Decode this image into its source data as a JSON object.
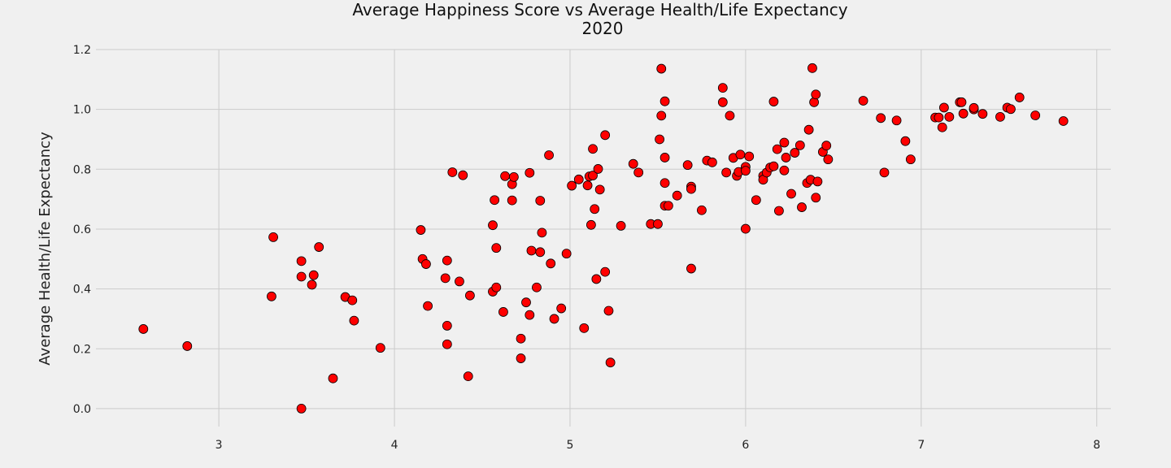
{
  "chart_data": {
    "type": "scatter",
    "title_lines": [
      "Average Happiness Score vs Average Health/Life Expectancy",
      "2020"
    ],
    "xlabel": "",
    "ylabel": "Average Health/Life Expectancy",
    "xlim": [
      2.3,
      8.08
    ],
    "ylim": [
      -0.06,
      1.2
    ],
    "xticks": [
      3,
      4,
      5,
      6,
      7,
      8
    ],
    "yticks": [
      0.0,
      0.2,
      0.4,
      0.6,
      0.8,
      1.0,
      1.2
    ],
    "ytick_labels": [
      "0.0",
      "0.2",
      "0.4",
      "0.6",
      "0.8",
      "1.0",
      "1.2"
    ],
    "grid": true,
    "marker_color": "#ff0000",
    "marker_edge": "#000000",
    "points": [
      [
        2.57,
        0.266
      ],
      [
        2.82,
        0.209
      ],
      [
        3.3,
        0.375
      ],
      [
        3.31,
        0.573
      ],
      [
        3.47,
        0.493
      ],
      [
        3.47,
        0.441
      ],
      [
        3.47,
        0.0
      ],
      [
        3.53,
        0.414
      ],
      [
        3.54,
        0.446
      ],
      [
        3.57,
        0.54
      ],
      [
        3.65,
        0.101
      ],
      [
        3.72,
        0.373
      ],
      [
        3.76,
        0.362
      ],
      [
        3.77,
        0.294
      ],
      [
        3.92,
        0.203
      ],
      [
        4.15,
        0.597
      ],
      [
        4.16,
        0.5
      ],
      [
        4.18,
        0.483
      ],
      [
        4.19,
        0.343
      ],
      [
        4.29,
        0.436
      ],
      [
        4.3,
        0.495
      ],
      [
        4.3,
        0.277
      ],
      [
        4.3,
        0.215
      ],
      [
        4.33,
        0.79
      ],
      [
        4.37,
        0.425
      ],
      [
        4.39,
        0.78
      ],
      [
        4.42,
        0.108
      ],
      [
        4.43,
        0.378
      ],
      [
        4.56,
        0.613
      ],
      [
        4.56,
        0.391
      ],
      [
        4.57,
        0.697
      ],
      [
        4.58,
        0.405
      ],
      [
        4.58,
        0.537
      ],
      [
        4.62,
        0.323
      ],
      [
        4.63,
        0.777
      ],
      [
        4.67,
        0.75
      ],
      [
        4.67,
        0.696
      ],
      [
        4.68,
        0.774
      ],
      [
        4.72,
        0.234
      ],
      [
        4.72,
        0.168
      ],
      [
        4.75,
        0.355
      ],
      [
        4.77,
        0.313
      ],
      [
        4.77,
        0.788
      ],
      [
        4.78,
        0.528
      ],
      [
        4.81,
        0.405
      ],
      [
        4.83,
        0.523
      ],
      [
        4.83,
        0.695
      ],
      [
        4.84,
        0.588
      ],
      [
        4.88,
        0.847
      ],
      [
        4.89,
        0.485
      ],
      [
        4.91,
        0.3
      ],
      [
        4.95,
        0.335
      ],
      [
        4.98,
        0.518
      ],
      [
        5.01,
        0.745
      ],
      [
        5.05,
        0.766
      ],
      [
        5.08,
        0.269
      ],
      [
        5.1,
        0.746
      ],
      [
        5.11,
        0.776
      ],
      [
        5.12,
        0.614
      ],
      [
        5.13,
        0.779
      ],
      [
        5.13,
        0.868
      ],
      [
        5.14,
        0.667
      ],
      [
        5.15,
        0.433
      ],
      [
        5.16,
        0.801
      ],
      [
        5.17,
        0.732
      ],
      [
        5.2,
        0.457
      ],
      [
        5.2,
        0.914
      ],
      [
        5.22,
        0.327
      ],
      [
        5.23,
        0.154
      ],
      [
        5.29,
        0.611
      ],
      [
        5.36,
        0.818
      ],
      [
        5.39,
        0.789
      ],
      [
        5.46,
        0.617
      ],
      [
        5.5,
        0.617
      ],
      [
        5.51,
        0.9
      ],
      [
        5.52,
        1.136
      ],
      [
        5.52,
        0.979
      ],
      [
        5.54,
        1.027
      ],
      [
        5.54,
        0.839
      ],
      [
        5.54,
        0.754
      ],
      [
        5.54,
        0.678
      ],
      [
        5.56,
        0.678
      ],
      [
        5.61,
        0.712
      ],
      [
        5.67,
        0.814
      ],
      [
        5.69,
        0.742
      ],
      [
        5.69,
        0.734
      ],
      [
        5.69,
        0.468
      ],
      [
        5.75,
        0.663
      ],
      [
        5.78,
        0.829
      ],
      [
        5.81,
        0.823
      ],
      [
        5.87,
        1.072
      ],
      [
        5.87,
        1.024
      ],
      [
        5.89,
        0.789
      ],
      [
        5.91,
        0.979
      ],
      [
        5.93,
        0.838
      ],
      [
        5.95,
        0.778
      ],
      [
        5.96,
        0.791
      ],
      [
        5.97,
        0.849
      ],
      [
        6.0,
        0.808
      ],
      [
        6.0,
        0.795
      ],
      [
        6.0,
        0.601
      ],
      [
        6.02,
        0.843
      ],
      [
        6.06,
        0.697
      ],
      [
        6.1,
        0.778
      ],
      [
        6.1,
        0.765
      ],
      [
        6.12,
        0.789
      ],
      [
        6.14,
        0.806
      ],
      [
        6.16,
        1.026
      ],
      [
        6.16,
        0.81
      ],
      [
        6.18,
        0.867
      ],
      [
        6.19,
        0.661
      ],
      [
        6.22,
        0.796
      ],
      [
        6.22,
        0.889
      ],
      [
        6.23,
        0.839
      ],
      [
        6.26,
        0.718
      ],
      [
        6.28,
        0.855
      ],
      [
        6.31,
        0.88
      ],
      [
        6.32,
        0.673
      ],
      [
        6.35,
        0.754
      ],
      [
        6.36,
        0.932
      ],
      [
        6.37,
        0.765
      ],
      [
        6.38,
        1.138
      ],
      [
        6.39,
        1.024
      ],
      [
        6.4,
        1.05
      ],
      [
        6.4,
        0.705
      ],
      [
        6.41,
        0.759
      ],
      [
        6.44,
        0.858
      ],
      [
        6.46,
        0.879
      ],
      [
        6.47,
        0.833
      ],
      [
        6.67,
        1.029
      ],
      [
        6.77,
        0.971
      ],
      [
        6.79,
        0.789
      ],
      [
        6.86,
        0.963
      ],
      [
        6.91,
        0.894
      ],
      [
        6.94,
        0.833
      ],
      [
        7.08,
        0.973
      ],
      [
        7.1,
        0.973
      ],
      [
        7.12,
        0.94
      ],
      [
        7.13,
        1.006
      ],
      [
        7.16,
        0.975
      ],
      [
        7.22,
        1.024
      ],
      [
        7.23,
        1.024
      ],
      [
        7.24,
        0.986
      ],
      [
        7.3,
        1.0
      ],
      [
        7.3,
        1.005
      ],
      [
        7.35,
        0.985
      ],
      [
        7.45,
        0.975
      ],
      [
        7.49,
        1.006
      ],
      [
        7.51,
        1.001
      ],
      [
        7.56,
        1.04
      ],
      [
        7.65,
        0.98
      ],
      [
        7.81,
        0.961
      ]
    ]
  }
}
